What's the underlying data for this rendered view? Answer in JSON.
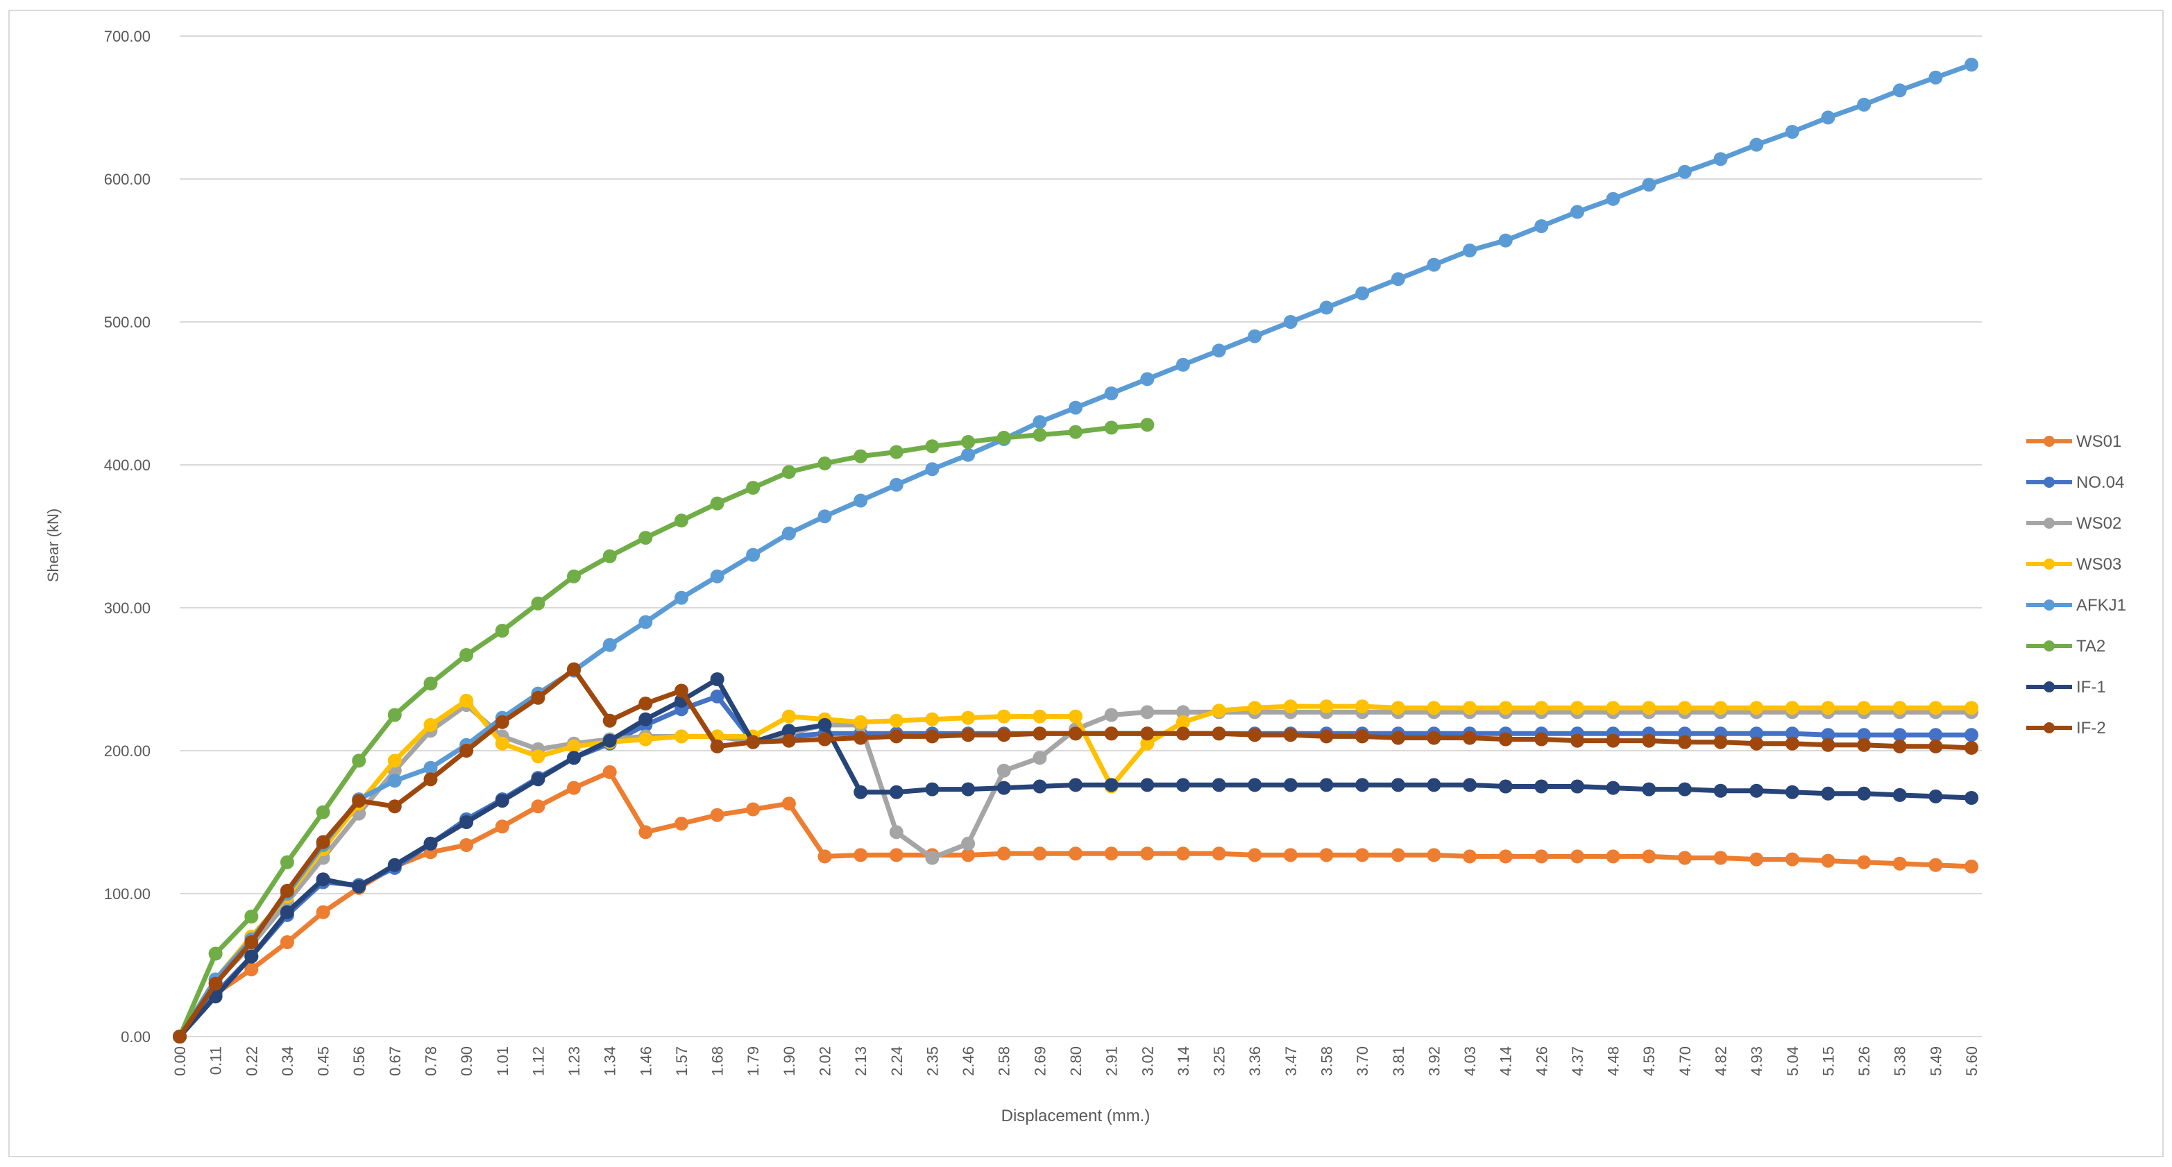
{
  "chart_data": {
    "type": "line",
    "title": "",
    "xlabel": "Displacement (mm.)",
    "ylabel": "Shear (kN)",
    "ylim": [
      0,
      700
    ],
    "y_ticks": [
      "0.00",
      "100.00",
      "200.00",
      "300.00",
      "400.00",
      "500.00",
      "600.00",
      "700.00"
    ],
    "grid": "horizontal",
    "legend_position": "right",
    "x_tick_labels": [
      "0.00",
      "0.11",
      "0.22",
      "0.34",
      "0.45",
      "0.56",
      "0.67",
      "0.78",
      "0.90",
      "1.01",
      "1.12",
      "1.23",
      "1.34",
      "1.46",
      "1.57",
      "1.68",
      "1.79",
      "1.90",
      "2.02",
      "2.13",
      "2.24",
      "2.35",
      "2.46",
      "2.58",
      "2.69",
      "2.80",
      "2.91",
      "3.02",
      "3.14",
      "3.25",
      "3.36",
      "3.47",
      "3.58",
      "3.70",
      "3.81",
      "3.92",
      "4.03",
      "4.14",
      "4.26",
      "4.37",
      "4.48",
      "4.59",
      "4.70",
      "4.82",
      "4.93",
      "5.04",
      "5.15",
      "5.26",
      "5.38",
      "5.49",
      "5.60"
    ],
    "series": [
      {
        "name": "WS01",
        "color": "#ed7d31",
        "values": [
          0,
          30,
          47,
          66,
          87,
          104,
          119,
          129,
          134,
          147,
          161,
          174,
          185,
          143,
          149,
          155,
          159,
          163,
          126,
          127,
          127,
          127,
          127,
          128,
          128,
          128,
          128,
          128,
          128,
          128,
          127,
          127,
          127,
          127,
          127,
          127,
          126,
          126,
          126,
          126,
          126,
          126,
          125,
          125,
          124,
          124,
          123,
          122,
          121,
          120,
          119
        ]
      },
      {
        "name": "NO.04",
        "color": "#4472c4",
        "values": [
          0,
          30,
          56,
          85,
          108,
          106,
          118,
          135,
          152,
          166,
          181,
          195,
          205,
          218,
          229,
          238,
          206,
          210,
          212,
          212,
          212,
          212,
          212,
          212,
          212,
          212,
          212,
          212,
          212,
          212,
          212,
          212,
          212,
          212,
          212,
          212,
          212,
          212,
          212,
          212,
          212,
          212,
          212,
          212,
          212,
          212,
          211,
          211,
          211,
          211,
          211
        ]
      },
      {
        "name": "WS02",
        "color": "#a5a5a5",
        "values": [
          0,
          38,
          64,
          94,
          125,
          156,
          186,
          214,
          232,
          210,
          201,
          205,
          208,
          210,
          210,
          210,
          206,
          212,
          218,
          218,
          143,
          125,
          135,
          186,
          195,
          215,
          225,
          227,
          227,
          227,
          227,
          227,
          227,
          227,
          227,
          227,
          227,
          227,
          227,
          227,
          227,
          227,
          227,
          227,
          227,
          227,
          227,
          227,
          227,
          227,
          227
        ]
      },
      {
        "name": "WS03",
        "color": "#ffc000",
        "values": [
          0,
          40,
          70,
          98,
          131,
          163,
          193,
          218,
          235,
          205,
          196,
          203,
          206,
          208,
          210,
          210,
          210,
          224,
          222,
          220,
          221,
          222,
          223,
          224,
          224,
          224,
          175,
          205,
          220,
          228,
          230,
          231,
          231,
          231,
          230,
          230,
          230,
          230,
          230,
          230,
          230,
          230,
          230,
          230,
          230,
          230,
          230,
          230,
          230,
          230,
          230
        ]
      },
      {
        "name": "AFKJ1",
        "color": "#5b9bd5",
        "values": [
          0,
          40,
          68,
          100,
          134,
          166,
          179,
          188,
          204,
          223,
          240,
          256,
          274,
          290,
          307,
          322,
          337,
          352,
          364,
          375,
          386,
          397,
          407,
          418,
          430,
          440,
          450,
          460,
          470,
          480,
          490,
          500,
          510,
          520,
          530,
          540,
          550,
          557,
          567,
          577,
          586,
          596,
          605,
          614,
          624,
          633,
          643,
          652,
          662,
          671,
          680
        ]
      },
      {
        "name": "TA2",
        "color": "#70ad47",
        "values": [
          0,
          58,
          84,
          122,
          157,
          193,
          225,
          247,
          267,
          284,
          303,
          322,
          336,
          349,
          361,
          373,
          384,
          395,
          401,
          406,
          409,
          413,
          416,
          419,
          421,
          423,
          426,
          428
        ]
      },
      {
        "name": "IF-1",
        "color": "#264478",
        "values": [
          0,
          28,
          56,
          87,
          110,
          105,
          120,
          135,
          150,
          165,
          180,
          195,
          207,
          222,
          235,
          250,
          206,
          214,
          218,
          171,
          171,
          173,
          173,
          174,
          175,
          176,
          176,
          176,
          176,
          176,
          176,
          176,
          176,
          176,
          176,
          176,
          176,
          175,
          175,
          175,
          174,
          173,
          173,
          172,
          172,
          171,
          170,
          170,
          169,
          168,
          167
        ]
      },
      {
        "name": "IF-2",
        "color": "#9e480e",
        "values": [
          0,
          37,
          66,
          102,
          136,
          165,
          161,
          180,
          200,
          220,
          237,
          257,
          221,
          233,
          242,
          203,
          206,
          207,
          208,
          209,
          210,
          210,
          211,
          211,
          212,
          212,
          212,
          212,
          212,
          212,
          211,
          211,
          210,
          210,
          209,
          209,
          209,
          208,
          208,
          207,
          207,
          207,
          206,
          206,
          205,
          205,
          204,
          204,
          203,
          203,
          202
        ]
      }
    ]
  }
}
